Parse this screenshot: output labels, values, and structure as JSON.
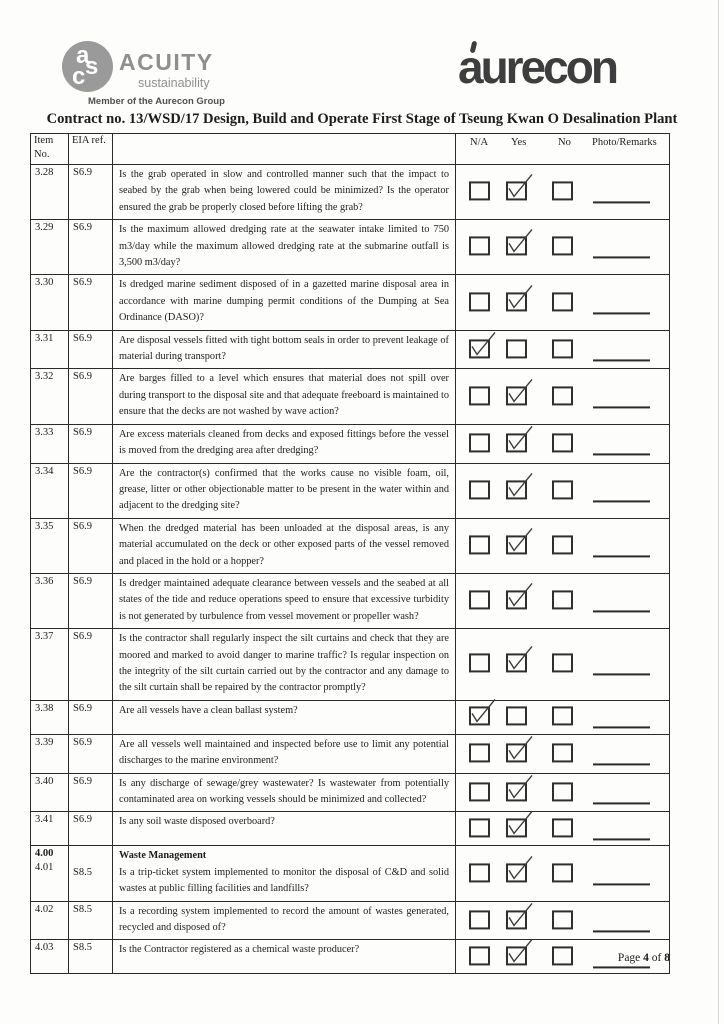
{
  "header": {
    "acuity": {
      "mono": "asc",
      "name": "ACUITY",
      "subtitle": "sustainability",
      "member": "Member of the Aurecon Group"
    },
    "aurecon": {
      "wordmark": "aurecon"
    }
  },
  "title": "Contract no. 13/WSD/17 Design, Build and Operate First Stage of Tseung Kwan O Desalination Plant",
  "table": {
    "headers": {
      "item_line1": "Item",
      "item_line2": "No.",
      "ref": "EIA ref.",
      "na": "N/A",
      "yes": "Yes",
      "no": "No",
      "remarks": "Photo/Remarks"
    },
    "rows": [
      {
        "item": "3.28",
        "ref": "S6.9",
        "text": "Is the grab operated in slow and controlled manner such that the impact to seabed by the grab when being lowered could be minimized? Is the operator ensured the grab be properly closed before lifting the grab?",
        "answer": "yes"
      },
      {
        "item": "3.29",
        "ref": "S6.9",
        "text": "Is the maximum allowed dredging rate at the seawater intake limited to 750 m3/day while the maximum allowed dredging rate at the submarine outfall is 3,500 m3/day?",
        "answer": "yes"
      },
      {
        "item": "3.30",
        "ref": "S6.9",
        "text": "Is dredged marine sediment disposed of in a gazetted marine disposal area in accordance with marine dumping permit conditions of the Dumping at Sea Ordinance (DASO)?",
        "answer": "yes"
      },
      {
        "item": "3.31",
        "ref": "S6.9",
        "text": "Are disposal vessels fitted with tight bottom seals in order to prevent leakage of material during transport?",
        "answer": "na"
      },
      {
        "item": "3.32",
        "ref": "S6.9",
        "text": "Are barges filled to a level which ensures that material does not spill over during transport to the disposal site and that adequate freeboard is maintained to ensure that the decks are not washed by wave action?",
        "answer": "yes"
      },
      {
        "item": "3.33",
        "ref": "S6.9",
        "text": "Are excess materials cleaned from decks and exposed fittings before the vessel is moved from the dredging area after dredging?",
        "answer": "yes"
      },
      {
        "item": "3.34",
        "ref": "S6.9",
        "text": "Are the contractor(s) confirmed that the works cause no visible foam, oil, grease, litter or other objectionable matter to be present in the water within and adjacent to the dredging site?",
        "answer": "yes"
      },
      {
        "item": "3.35",
        "ref": "S6.9",
        "text": "When the dredged material has been unloaded at the disposal areas, is any material accumulated on the deck or other exposed parts of the vessel removed and placed in the hold or a hopper?",
        "answer": "yes"
      },
      {
        "item": "3.36",
        "ref": "S6.9",
        "text": "Is dredger maintained adequate clearance between vessels and the seabed at all states of the tide and reduce operations speed to ensure that excessive turbidity is not generated by turbulence from vessel movement or propeller wash?",
        "answer": "yes"
      },
      {
        "item": "3.37",
        "ref": "S6.9",
        "text": "Is the contractor shall regularly inspect the silt curtains and check that they are moored and marked to avoid danger to marine traffic? Is regular inspection on the integrity of the silt curtain carried out by the contractor and any damage to the silt curtain shall be repaired by the contractor promptly?",
        "answer": "yes"
      },
      {
        "item": "3.38",
        "ref": "S6.9",
        "text": "Are all vessels have a clean ballast system?",
        "answer": "na"
      },
      {
        "item": "3.39",
        "ref": "S6.9",
        "text": "Are all vessels well maintained and inspected before use to limit any potential discharges to the marine environment?",
        "answer": "yes"
      },
      {
        "item": "3.40",
        "ref": "S6.9",
        "text": "Is any discharge of sewage/grey wastewater? Is wastewater from potentially contaminated area on working vessels should be minimized and collected?",
        "answer": "yes"
      },
      {
        "item": "3.41",
        "ref": "S6.9",
        "text": "Is any soil waste disposed overboard?",
        "answer": "yes"
      },
      {
        "item": "4.00",
        "section_title": "Waste Management",
        "sub_item": "4.01",
        "ref": "S8.5",
        "text": "Is a trip-ticket system implemented to monitor the disposal of C&D and solid wastes at public filling facilities and landfills?",
        "answer": "yes"
      },
      {
        "item": "4.02",
        "ref": "S8.5",
        "text": "Is a recording system implemented to record the amount of wastes generated, recycled and disposed of?",
        "answer": "yes"
      },
      {
        "item": "4.03",
        "ref": "S8.5",
        "text": "Is the Contractor registered as a chemical waste producer?",
        "answer": "yes"
      }
    ]
  },
  "footer": {
    "prefix": "Page",
    "page": "4",
    "middle": "of",
    "total": "8"
  },
  "colors": {
    "paper": "#fdfdfc",
    "ink": "#1c1c1c",
    "table_border": "#2a2a2a",
    "logo_gray": "#8f8f8f",
    "aurecon_gray": "#3e3e3e",
    "check_ink": "#3c3c3c"
  }
}
